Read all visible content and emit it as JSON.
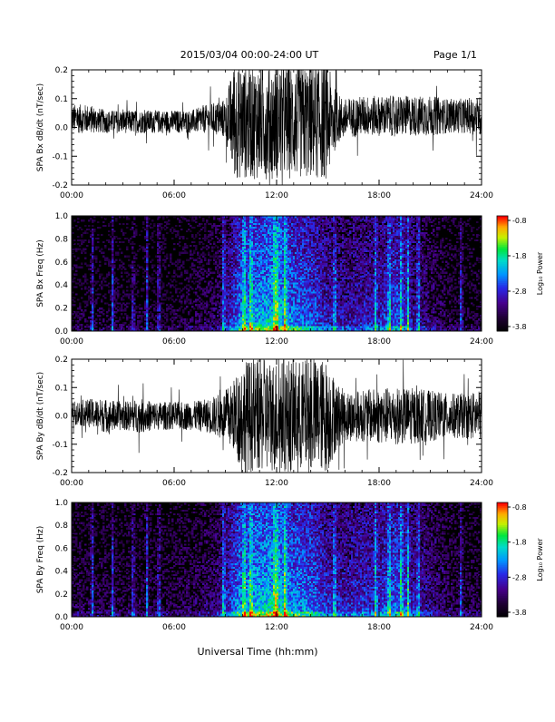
{
  "header": {
    "title": "2015/03/04  00:00-24:00 UT",
    "page": "Page 1/1"
  },
  "xaxis_label": "Universal Time (hh:mm)",
  "chart_data": [
    {
      "type": "line",
      "title": "",
      "ylabel": "SPA Bx dB/dt (nT/sec)",
      "xlim": [
        "00:00",
        "24:00"
      ],
      "ylim": [
        -0.2,
        0.2
      ],
      "x_ticks": [
        "00:00",
        "06:00",
        "12:00",
        "18:00",
        "24:00"
      ],
      "y_ticks": [
        "-0.2",
        "-0.1",
        "0.0",
        "0.1",
        "0.2"
      ],
      "series": [
        {
          "x_hours": [
            0,
            1,
            2,
            3,
            4,
            5,
            6,
            7,
            8,
            9,
            9.5,
            10,
            11,
            12,
            13,
            14,
            15,
            15.5,
            16,
            17,
            18,
            19,
            20,
            21,
            22,
            23,
            24
          ],
          "center": [
            0.03,
            0.03,
            0.02,
            0.02,
            0.02,
            0.02,
            0.02,
            0.02,
            0.03,
            0.03,
            0.02,
            0.02,
            0.02,
            0.02,
            0.02,
            0.02,
            0.02,
            0.03,
            0.03,
            0.04,
            0.04,
            0.04,
            0.04,
            0.04,
            0.04,
            0.04,
            0.04
          ],
          "envelope": [
            0.05,
            0.05,
            0.04,
            0.04,
            0.04,
            0.04,
            0.04,
            0.04,
            0.05,
            0.07,
            0.2,
            0.2,
            0.2,
            0.2,
            0.2,
            0.2,
            0.2,
            0.09,
            0.07,
            0.07,
            0.07,
            0.07,
            0.07,
            0.07,
            0.06,
            0.06,
            0.07
          ]
        }
      ]
    },
    {
      "type": "heatmap",
      "title": "",
      "ylabel": "SPA Bx Freq (Hz)",
      "xlim": [
        "00:00",
        "24:00"
      ],
      "ylim": [
        0.0,
        1.0
      ],
      "x_ticks": [
        "00:00",
        "06:00",
        "12:00",
        "18:00",
        "24:00"
      ],
      "y_ticks": [
        "0.0",
        "0.2",
        "0.4",
        "0.6",
        "0.8",
        "1.0"
      ],
      "colorbar": {
        "label": "Log₁₀ Power",
        "range": [
          -3.8,
          -0.8
        ],
        "ticks": [
          "-0.8",
          "-1.8",
          "-2.8",
          "-3.8"
        ]
      },
      "activity_profile": {
        "x_hours": [
          0,
          3,
          6,
          8.5,
          10,
          11,
          12,
          13,
          14,
          15,
          16,
          17,
          18,
          19,
          20,
          21,
          22,
          23,
          24
        ],
        "level": [
          0.3,
          0.3,
          0.3,
          0.4,
          0.85,
          0.9,
          1.0,
          0.8,
          0.75,
          0.6,
          0.55,
          0.6,
          0.6,
          0.75,
          0.55,
          0.45,
          0.35,
          0.3,
          0.3
        ]
      },
      "bright_columns_hours": [
        1.2,
        2.4,
        3.6,
        4.4,
        5.1,
        8.9,
        10.1,
        10.5,
        11.9,
        12.0,
        12.5,
        15.4,
        17.8,
        18.6,
        19.3,
        19.7,
        20.3,
        22.8
      ]
    },
    {
      "type": "line",
      "title": "",
      "ylabel": "SPA By dB/dt (nT/sec)",
      "xlim": [
        "00:00",
        "24:00"
      ],
      "ylim": [
        -0.2,
        0.2
      ],
      "x_ticks": [
        "00:00",
        "06:00",
        "12:00",
        "18:00",
        "24:00"
      ],
      "y_ticks": [
        "-0.2",
        "-0.1",
        "0.0",
        "0.1",
        "0.2"
      ],
      "series": [
        {
          "x_hours": [
            0,
            1,
            2,
            3,
            4,
            5,
            6,
            7,
            8,
            9,
            9.5,
            10,
            11,
            12,
            13,
            14,
            15,
            15.5,
            16,
            17,
            18,
            19,
            20,
            21,
            22,
            23,
            24
          ],
          "center": [
            0.01,
            0.01,
            0.0,
            0.0,
            0.0,
            0.0,
            0.0,
            0.0,
            0.0,
            0.0,
            0.0,
            0.0,
            0.0,
            0.0,
            0.0,
            0.0,
            0.0,
            0.0,
            0.0,
            0.0,
            0.0,
            0.0,
            0.0,
            0.0,
            0.0,
            0.0,
            0.0
          ],
          "envelope": [
            0.04,
            0.05,
            0.06,
            0.05,
            0.06,
            0.05,
            0.05,
            0.05,
            0.06,
            0.09,
            0.13,
            0.2,
            0.2,
            0.2,
            0.2,
            0.2,
            0.2,
            0.12,
            0.09,
            0.09,
            0.1,
            0.1,
            0.1,
            0.09,
            0.08,
            0.08,
            0.09
          ]
        }
      ]
    },
    {
      "type": "heatmap",
      "title": "",
      "ylabel": "SPA By Freq (Hz)",
      "xlim": [
        "00:00",
        "24:00"
      ],
      "ylim": [
        0.0,
        1.0
      ],
      "x_ticks": [
        "00:00",
        "06:00",
        "12:00",
        "18:00",
        "24:00"
      ],
      "y_ticks": [
        "0.0",
        "0.2",
        "0.4",
        "0.6",
        "0.8",
        "1.0"
      ],
      "colorbar": {
        "label": "Log₁₀ Power",
        "range": [
          -3.8,
          -0.8
        ],
        "ticks": [
          "-0.8",
          "-1.8",
          "-2.8",
          "-3.8"
        ]
      },
      "activity_profile": {
        "x_hours": [
          0,
          3,
          6,
          8.5,
          10,
          11,
          12,
          13,
          14,
          15,
          16,
          17,
          18,
          19,
          20,
          21,
          22,
          23,
          24
        ],
        "level": [
          0.35,
          0.35,
          0.35,
          0.45,
          0.9,
          0.95,
          1.0,
          0.85,
          0.8,
          0.65,
          0.6,
          0.65,
          0.65,
          0.8,
          0.6,
          0.5,
          0.4,
          0.35,
          0.35
        ]
      },
      "bright_columns_hours": [
        1.2,
        2.4,
        3.6,
        4.4,
        5.1,
        8.9,
        10.1,
        10.5,
        11.9,
        12.0,
        12.5,
        15.4,
        17.8,
        18.6,
        19.3,
        19.7,
        20.3,
        22.8
      ]
    }
  ]
}
